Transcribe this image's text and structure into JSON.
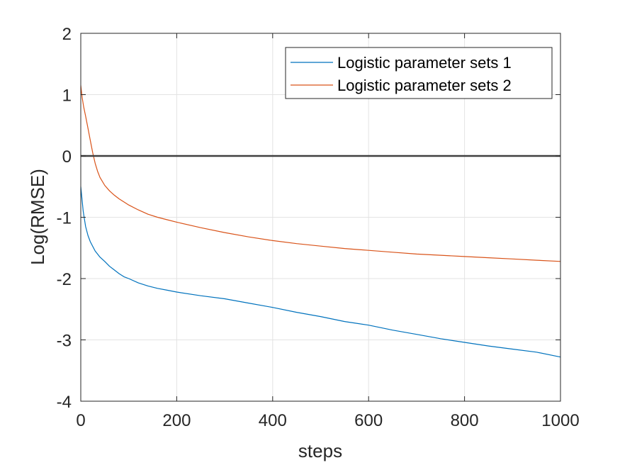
{
  "chart_data": {
    "type": "line",
    "xlabel": "steps",
    "ylabel": "Log(RMSE)",
    "xlim": [
      0,
      1000
    ],
    "ylim": [
      -4,
      2
    ],
    "xticks": [
      0,
      200,
      400,
      600,
      800,
      1000
    ],
    "yticks": [
      -4,
      -3,
      -2,
      -1,
      0,
      1,
      2
    ],
    "grid": true,
    "legend_position": "top-right",
    "reference_line": {
      "y": 0,
      "color": "#404040"
    },
    "series": [
      {
        "name": "Logistic parameter sets 1",
        "color": "#0072BD",
        "x": [
          0,
          5,
          10,
          15,
          20,
          30,
          40,
          50,
          60,
          70,
          80,
          90,
          100,
          120,
          140,
          160,
          180,
          200,
          250,
          300,
          350,
          400,
          450,
          500,
          550,
          600,
          650,
          700,
          750,
          800,
          850,
          900,
          950,
          1000
        ],
        "y": [
          -0.5,
          -0.9,
          -1.15,
          -1.3,
          -1.4,
          -1.55,
          -1.65,
          -1.72,
          -1.8,
          -1.86,
          -1.92,
          -1.97,
          -2.0,
          -2.07,
          -2.12,
          -2.16,
          -2.19,
          -2.22,
          -2.28,
          -2.33,
          -2.4,
          -2.47,
          -2.55,
          -2.62,
          -2.7,
          -2.76,
          -2.84,
          -2.91,
          -2.98,
          -3.04,
          -3.1,
          -3.15,
          -3.2,
          -3.28
        ]
      },
      {
        "name": "Logistic parameter sets 2",
        "color": "#D95319",
        "x": [
          0,
          3,
          6,
          10,
          15,
          20,
          25,
          30,
          35,
          40,
          50,
          60,
          70,
          80,
          90,
          100,
          120,
          140,
          160,
          180,
          200,
          250,
          300,
          350,
          400,
          450,
          500,
          550,
          600,
          650,
          700,
          750,
          800,
          850,
          900,
          950,
          1000
        ],
        "y": [
          1.15,
          0.95,
          0.8,
          0.65,
          0.45,
          0.25,
          0.05,
          -0.12,
          -0.25,
          -0.35,
          -0.48,
          -0.57,
          -0.64,
          -0.7,
          -0.75,
          -0.8,
          -0.88,
          -0.95,
          -1.0,
          -1.04,
          -1.08,
          -1.17,
          -1.25,
          -1.32,
          -1.38,
          -1.43,
          -1.47,
          -1.51,
          -1.54,
          -1.57,
          -1.6,
          -1.62,
          -1.64,
          -1.66,
          -1.68,
          -1.7,
          -1.72
        ]
      }
    ]
  }
}
